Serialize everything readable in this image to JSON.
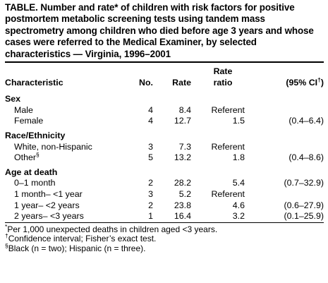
{
  "title": "TABLE. Number and rate* of children with risk factors for positive postmortem metabolic screening tests using tandem mass spectrometry among children who died before age 3 years and whose cases were referred to the Medical Examiner, by selected characteristics — Virginia, 1996–2001",
  "header": {
    "characteristic": "Characteristic",
    "no": "No.",
    "rate": "Rate",
    "rate_ratio_line1": "Rate",
    "rate_ratio_line2": "ratio",
    "ci": "(95% CI",
    "ci_mark": "†",
    "ci_close": ")"
  },
  "sections": [
    {
      "label": "Sex",
      "rows": [
        {
          "name": "Male",
          "mark": "",
          "no": "4",
          "rate": "8.4",
          "ratio": "Referent",
          "ci": ""
        },
        {
          "name": "Female",
          "mark": "",
          "no": "4",
          "rate": "12.7",
          "ratio": "1.5",
          "ci": "(0.4–6.4)"
        }
      ]
    },
    {
      "label": "Race/Ethnicity",
      "rows": [
        {
          "name": "White, non-Hispanic",
          "mark": "",
          "no": "3",
          "rate": "7.3",
          "ratio": "Referent",
          "ci": ""
        },
        {
          "name": "Other",
          "mark": "§",
          "no": "5",
          "rate": "13.2",
          "ratio": "1.8",
          "ci": "(0.4–8.6)"
        }
      ]
    },
    {
      "label": "Age at death",
      "rows": [
        {
          "name": "0–1 month",
          "mark": "",
          "no": "2",
          "rate": "28.2",
          "ratio": "5.4",
          "ci": "(0.7–32.9)"
        },
        {
          "name": "1 month– <1 year",
          "mark": "",
          "no": "3",
          "rate": "5.2",
          "ratio": "Referent",
          "ci": ""
        },
        {
          "name": "1 year– <2 years",
          "mark": "",
          "no": "2",
          "rate": "23.8",
          "ratio": "4.6",
          "ci": "(0.6–27.9)"
        },
        {
          "name": "2 years– <3 years",
          "mark": "",
          "no": "1",
          "rate": "16.4",
          "ratio": "3.2",
          "ci": "(0.1–25.9)"
        }
      ]
    }
  ],
  "footnotes": [
    {
      "mark": "*",
      "text": "Per 1,000 unexpected deaths in children aged <3 years."
    },
    {
      "mark": "†",
      "text": "Confidence interval; Fisher’s exact test."
    },
    {
      "mark": "§",
      "text": "Black (n = two); Hispanic (n = three)."
    }
  ]
}
